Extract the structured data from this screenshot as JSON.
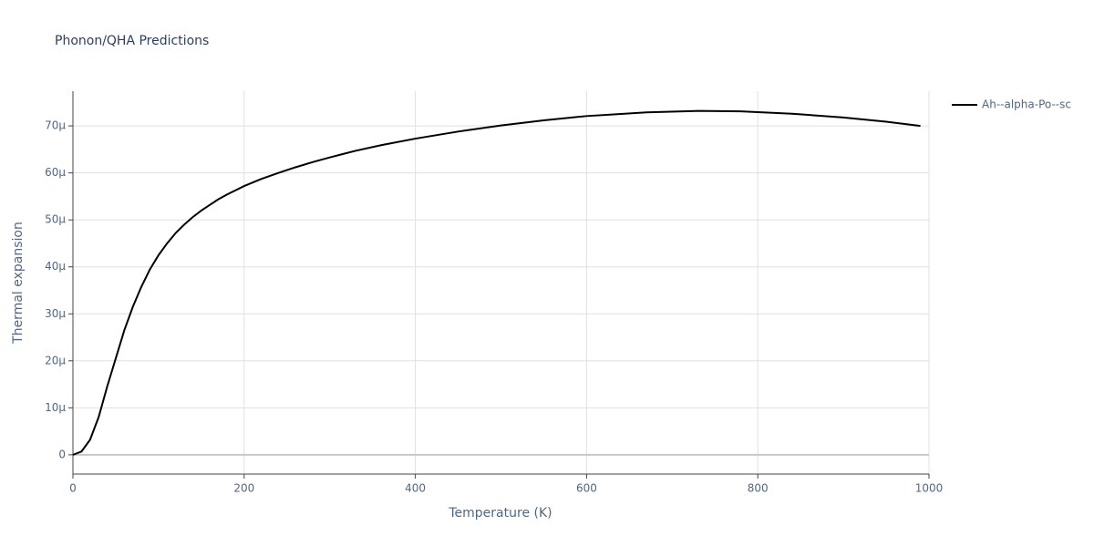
{
  "chart_data": {
    "type": "line",
    "title": "Phonon/QHA Predictions",
    "x_label": "Temperature (K)",
    "y_label": "Thermal expansion",
    "x": [
      0,
      10,
      20,
      30,
      40,
      50,
      60,
      70,
      80,
      90,
      100,
      110,
      120,
      130,
      140,
      150,
      160,
      170,
      180,
      190,
      200,
      220,
      240,
      260,
      280,
      300,
      330,
      360,
      400,
      450,
      500,
      550,
      600,
      670,
      730,
      780,
      840,
      900,
      950,
      990
    ],
    "series": [
      {
        "name": "Ah--alpha-Po--sc",
        "color": "#000000",
        "values": [
          0,
          0.7,
          3.2,
          8,
          14.5,
          20.5,
          26.5,
          31.5,
          35.8,
          39.5,
          42.5,
          45,
          47.2,
          49,
          50.6,
          52,
          53.2,
          54.4,
          55.4,
          56.3,
          57.2,
          58.7,
          60,
          61.2,
          62.3,
          63.3,
          64.7,
          65.9,
          67.3,
          68.8,
          70.1,
          71.2,
          72.1,
          72.9,
          73.2,
          73.1,
          72.6,
          71.8,
          70.9,
          70
        ]
      }
    ],
    "xlim": [
      0,
      1000
    ],
    "xticks": [
      0,
      200,
      400,
      600,
      800,
      1000
    ],
    "ylim": [
      -4.1,
      77.4
    ],
    "yticks": [
      0,
      {
        "value": 10,
        "label": "10µ"
      },
      {
        "value": 20,
        "label": "20µ"
      },
      {
        "value": 30,
        "label": "30µ"
      },
      {
        "value": 40,
        "label": "40µ"
      },
      {
        "value": 50,
        "label": "50µ"
      },
      {
        "value": 60,
        "label": "60µ"
      },
      {
        "value": 70,
        "label": "70µ"
      }
    ],
    "grid": true,
    "legend": "right"
  }
}
